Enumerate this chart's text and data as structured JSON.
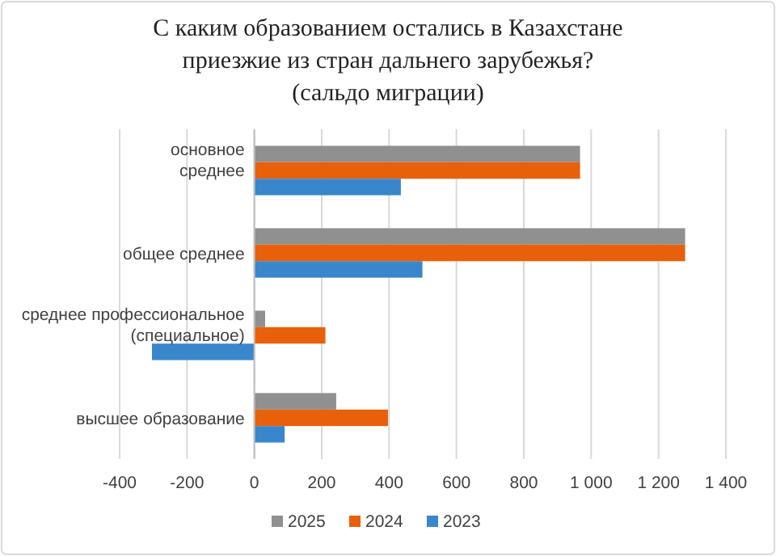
{
  "chart_data": {
    "type": "bar",
    "orientation": "horizontal",
    "title": "С каким образованием остались в Казахстане\nприезжие из стран дальнего зарубежья?\n(сальдо миграции)",
    "categories": [
      "основное\nсреднее",
      "общее среднее",
      "среднее профессиональное\n(специальное)",
      "высшее образование"
    ],
    "series": [
      {
        "name": "2025",
        "color": "#909090",
        "values": [
          967,
          1279,
          32,
          243
        ]
      },
      {
        "name": "2024",
        "color": "#e8600a",
        "values": [
          967,
          1279,
          211,
          397
        ]
      },
      {
        "name": "2023",
        "color": "#3a86cc",
        "values": [
          435,
          499,
          -304,
          90
        ]
      }
    ],
    "xlim": [
      -400,
      1400
    ],
    "xticks": [
      -400,
      -200,
      0,
      200,
      400,
      600,
      800,
      {
        "value": 1000,
        "label": "1 000"
      },
      {
        "value": 1200,
        "label": "1 200"
      },
      {
        "value": 1400,
        "label": "1 400"
      }
    ],
    "grid": "x",
    "legend": "bottom"
  }
}
